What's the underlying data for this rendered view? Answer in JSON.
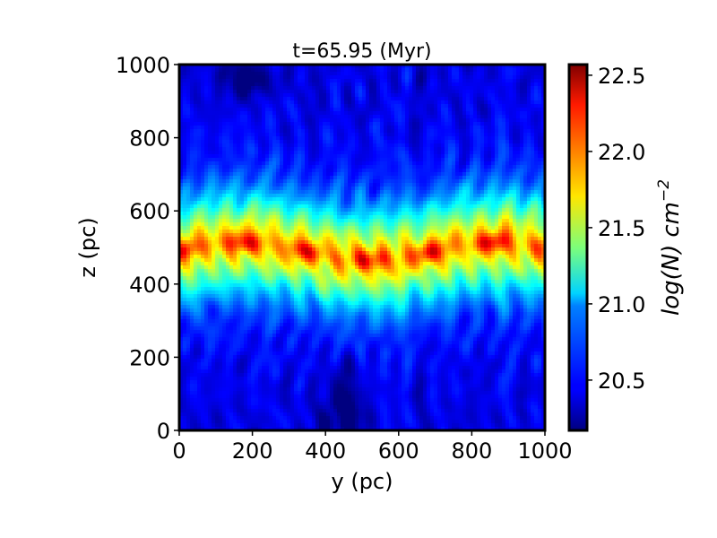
{
  "chart_data": {
    "type": "heatmap",
    "title": "t=65.95 (Myr)",
    "xlabel": "y (pc)",
    "ylabel": "z (pc)",
    "xlim": [
      0,
      1000
    ],
    "ylim": [
      0,
      1000
    ],
    "xticks": [
      "0",
      "200",
      "400",
      "600",
      "800",
      "1000"
    ],
    "yticks": [
      "0",
      "200",
      "400",
      "600",
      "800",
      "1000"
    ],
    "colorbar": {
      "label_main": "log(N)",
      "label_unit": "cm",
      "label_exponent": "−2",
      "range": [
        20.17,
        22.57
      ],
      "ticks": [
        "20.5",
        "21.0",
        "21.5",
        "22.0",
        "22.5"
      ],
      "colormap": "jet"
    },
    "structure": {
      "midplane_z": 490,
      "dense_layer_halfwidth": 90,
      "peak_log_N": 22.4,
      "background_log_N": 20.4
    },
    "grid": false
  }
}
